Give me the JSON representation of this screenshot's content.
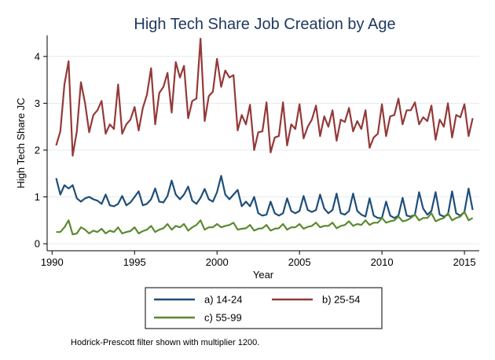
{
  "chart_data": {
    "type": "line",
    "title": "High Tech Share Job Creation by Age",
    "xlabel": "Year",
    "ylabel": "High Tech Share JC",
    "xlim": [
      1989.7,
      2015.9
    ],
    "ylim": [
      -0.15,
      4.45
    ],
    "xticks": [
      1990,
      1995,
      2000,
      2005,
      2010,
      2015
    ],
    "xtick_labels": [
      "1990",
      "1995",
      "2000",
      "2005",
      "2010",
      "2015"
    ],
    "yticks": [
      0,
      1,
      2,
      3,
      4
    ],
    "ytick_labels": [
      "0",
      "1",
      "2",
      "3",
      "4"
    ],
    "grid": true,
    "legend_position": "bottom",
    "note": "Hodrick-Prescott filter shown with multiplier 1200.",
    "x": [
      1990.25,
      1990.5,
      1990.75,
      1991,
      1991.25,
      1991.5,
      1991.75,
      1992,
      1992.25,
      1992.5,
      1992.75,
      1993,
      1993.25,
      1993.5,
      1993.75,
      1994,
      1994.25,
      1994.5,
      1994.75,
      1995,
      1995.25,
      1995.5,
      1995.75,
      1996,
      1996.25,
      1996.5,
      1996.75,
      1997,
      1997.25,
      1997.5,
      1997.75,
      1998,
      1998.25,
      1998.5,
      1998.75,
      1999,
      1999.25,
      1999.5,
      1999.75,
      2000,
      2000.25,
      2000.5,
      2000.75,
      2001,
      2001.25,
      2001.5,
      2001.75,
      2002,
      2002.25,
      2002.5,
      2002.75,
      2003,
      2003.25,
      2003.5,
      2003.75,
      2004,
      2004.25,
      2004.5,
      2004.75,
      2005,
      2005.25,
      2005.5,
      2005.75,
      2006,
      2006.25,
      2006.5,
      2006.75,
      2007,
      2007.25,
      2007.5,
      2007.75,
      2008,
      2008.25,
      2008.5,
      2008.75,
      2009,
      2009.25,
      2009.5,
      2009.75,
      2010,
      2010.25,
      2010.5,
      2010.75,
      2011,
      2011.25,
      2011.5,
      2011.75,
      2012,
      2012.25,
      2012.5,
      2012.75,
      2013,
      2013.25,
      2013.5,
      2013.75,
      2014,
      2014.25,
      2014.5,
      2014.75,
      2015,
      2015.25,
      2015.5
    ],
    "series": [
      {
        "name": "a) 14-24",
        "label": "a) 14-24",
        "color": "#1f4e79",
        "values": [
          1.4,
          1.05,
          1.25,
          1.18,
          1.25,
          0.97,
          0.9,
          0.97,
          1.0,
          0.95,
          0.92,
          0.85,
          1.05,
          0.82,
          0.8,
          0.85,
          1.02,
          0.82,
          0.88,
          1.0,
          1.12,
          0.82,
          0.85,
          0.95,
          1.18,
          0.9,
          0.88,
          1.02,
          1.35,
          1.05,
          0.95,
          1.05,
          1.22,
          0.92,
          0.85,
          0.98,
          1.17,
          0.95,
          0.9,
          1.1,
          1.45,
          1.05,
          0.95,
          1.05,
          1.15,
          0.8,
          0.9,
          0.8,
          1.0,
          0.65,
          0.6,
          0.62,
          0.9,
          0.65,
          0.6,
          0.65,
          0.97,
          0.7,
          0.65,
          0.7,
          1.02,
          0.72,
          0.68,
          0.72,
          1.05,
          0.75,
          0.65,
          0.72,
          1.07,
          0.65,
          0.62,
          0.7,
          1.07,
          0.7,
          0.62,
          0.58,
          0.97,
          0.6,
          0.55,
          0.55,
          0.9,
          0.6,
          0.55,
          0.6,
          0.98,
          0.6,
          0.58,
          0.62,
          1.1,
          0.75,
          0.62,
          0.7,
          1.1,
          0.62,
          0.58,
          0.62,
          1.12,
          0.65,
          0.6,
          0.68,
          1.18,
          0.72
        ]
      },
      {
        "name": "b) 25-54",
        "label": "b) 25-54",
        "color": "#943939",
        "values": [
          2.1,
          2.4,
          3.4,
          3.9,
          1.88,
          2.4,
          3.45,
          3.0,
          2.38,
          2.75,
          2.85,
          3.05,
          2.35,
          2.55,
          2.45,
          3.4,
          2.35,
          2.55,
          2.65,
          2.92,
          2.42,
          2.9,
          3.18,
          3.75,
          2.55,
          3.22,
          3.35,
          3.65,
          2.8,
          3.88,
          3.55,
          3.8,
          2.68,
          3.05,
          3.1,
          4.38,
          2.62,
          3.15,
          3.25,
          3.95,
          3.35,
          3.7,
          3.55,
          3.6,
          2.42,
          2.75,
          2.55,
          2.97,
          2.0,
          2.38,
          2.4,
          3.02,
          1.95,
          2.27,
          2.3,
          3.02,
          2.1,
          2.55,
          2.45,
          2.98,
          2.25,
          2.5,
          2.65,
          2.95,
          2.3,
          2.72,
          2.5,
          2.85,
          2.2,
          2.65,
          2.6,
          2.9,
          2.4,
          2.62,
          2.45,
          2.85,
          2.05,
          2.27,
          2.35,
          2.98,
          2.3,
          2.72,
          2.75,
          3.1,
          2.55,
          2.85,
          2.85,
          3.02,
          2.55,
          2.7,
          2.62,
          2.95,
          2.22,
          2.65,
          2.5,
          3.0,
          2.27,
          2.75,
          2.7,
          2.98,
          2.3,
          2.68
        ]
      },
      {
        "name": "c) 55-99",
        "label": "c) 55-99",
        "color": "#5b8a2e",
        "values": [
          0.25,
          0.25,
          0.35,
          0.5,
          0.2,
          0.22,
          0.35,
          0.3,
          0.22,
          0.28,
          0.25,
          0.32,
          0.22,
          0.28,
          0.25,
          0.35,
          0.22,
          0.25,
          0.27,
          0.35,
          0.22,
          0.27,
          0.3,
          0.38,
          0.25,
          0.3,
          0.33,
          0.42,
          0.3,
          0.38,
          0.35,
          0.42,
          0.28,
          0.35,
          0.4,
          0.5,
          0.3,
          0.35,
          0.35,
          0.42,
          0.35,
          0.38,
          0.4,
          0.45,
          0.3,
          0.32,
          0.33,
          0.4,
          0.28,
          0.32,
          0.33,
          0.4,
          0.28,
          0.32,
          0.33,
          0.42,
          0.3,
          0.35,
          0.35,
          0.42,
          0.32,
          0.36,
          0.38,
          0.45,
          0.35,
          0.38,
          0.38,
          0.45,
          0.33,
          0.38,
          0.4,
          0.48,
          0.38,
          0.42,
          0.4,
          0.5,
          0.4,
          0.45,
          0.45,
          0.55,
          0.45,
          0.48,
          0.5,
          0.58,
          0.48,
          0.5,
          0.55,
          0.62,
          0.5,
          0.55,
          0.55,
          0.65,
          0.48,
          0.52,
          0.55,
          0.65,
          0.5,
          0.55,
          0.58,
          0.68,
          0.5,
          0.55
        ]
      }
    ]
  }
}
